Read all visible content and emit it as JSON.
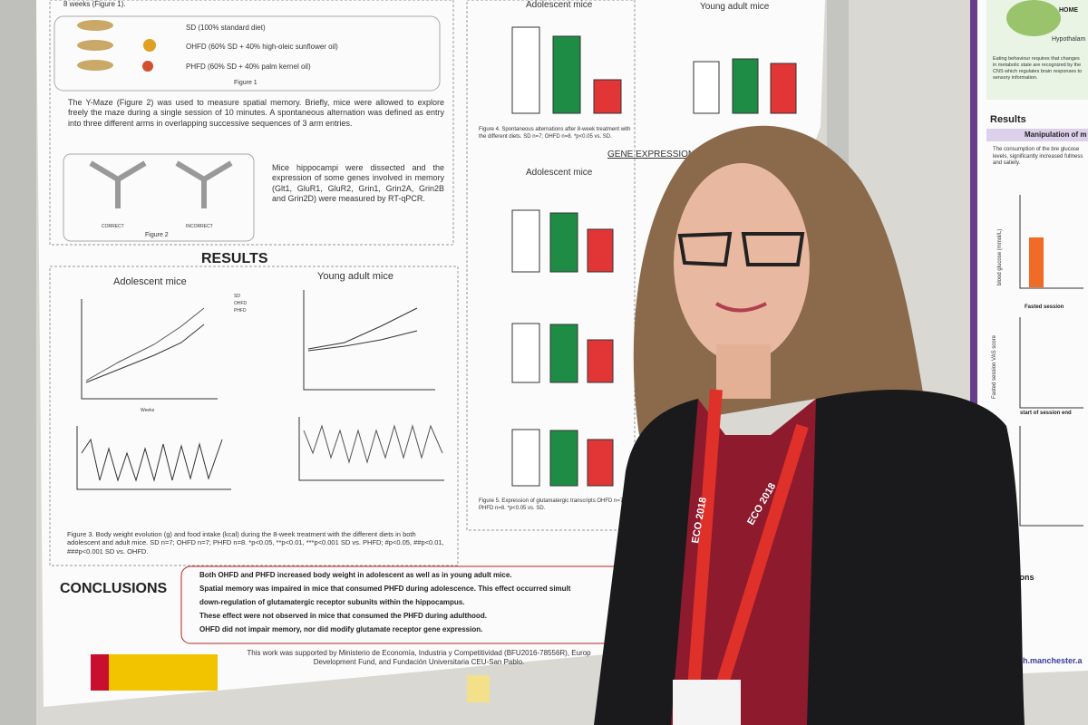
{
  "poster": {
    "methods": {
      "intro": "8 weeks (Figure 1).",
      "diets": [
        "SD (100% standard diet)",
        "OHFD (60% SD + 40% high-oleic sunflower oil)",
        "PHFD (60% SD + 40% palm kernel oil)"
      ],
      "figure1": "Figure 1",
      "ymaze": "The Y-Maze (Figure 2) was used to measure spatial memory. Briefly, mice were allowed to explore freely the maze during a single session of 10 minutes. A spontaneous alternation was defined as entry into three different arms in overlapping successive sequences of 3 arm entries.",
      "maze_labels": [
        "CORRECT",
        "INCORRECT"
      ],
      "figure2": "Figure 2",
      "genes": "Mice hippocampi were dissected and the expression of some genes involved in memory (Glt1, GluR1, GluR2, Grin1, Grin2A, Grin2B and Grin2D) were measured by RT-qPCR."
    },
    "results": {
      "title": "RESULTS",
      "panels": [
        "Adolescent mice",
        "Young adult mice"
      ],
      "legend": [
        "SD",
        "OHFD",
        "PHFD"
      ],
      "x_label": "Weeks",
      "figure3": "Figure 3. Body weight evolution (g) and food intake (kcal) during the 8-week treatment with the different diets in both adolescent and adult mice. SD n=7; OHFD n=7; PHFD n=8. *p<0.05, **p<0.01, ***p<0.001 SD vs. PHFD; #p<0.05, ##p<0.01, ###p<0.001 SD vs. OHFD."
    },
    "memory": {
      "panels": [
        "Adolescent mice",
        "Young adult mice"
      ],
      "figure4": "Figure 4. Spontaneous alternations after 8-week treatment with the different diets. SD n=7; OHFD n=8. *p<0.05 vs. SD.",
      "gene_title": "GENE EXPRESSION",
      "gene_panel": "Adolescent mice",
      "figure5": "Figure 5. Expression of glutamatergic transcripts OHFD n=7; PHFD n=8. *p<0.05 vs. SD."
    },
    "conclusions": {
      "title": "CONCLUSIONS",
      "items": [
        "Both OHFD and PHFD increased body weight in adolescent as well as in young adult mice.",
        "Spatial memory was impaired in mice that consumed PHFD during adolescence. This effect occurred simult",
        "down-regulation of glutamatergic receptor subunits within the hippocampus.",
        "These effect were not observed in mice that consumed the PHFD during adulthood.",
        "OHFD did not impair memory, nor did modify glutamate receptor gene expression."
      ]
    },
    "funding": "This work was supported by Ministerio de Economía, Industria y Competitividad (BFU2016-78556R), Europ Development Fund, and Fundación Universitaria CEU-San Pablo."
  },
  "side_poster": {
    "home": "HOME",
    "hypothalamus": "Hypothalam",
    "intro": "Eating behaviour requires that changes in metabolic state are recognized by the CNS which regulates brain responses to sensory information.",
    "results": "Results",
    "subtitle": "Manipulation of m",
    "text": "The consumption of the bre glucose levels, significantly increased fullness and satiety.",
    "axis1": "blood glucose (mmol/L)",
    "fasted": "Fasted session",
    "axis2": "Fasted session VAS score",
    "session": "start of session end",
    "ions": "ions",
    "url": "h.manchester.a"
  },
  "lanyard": "ECO 2018"
}
